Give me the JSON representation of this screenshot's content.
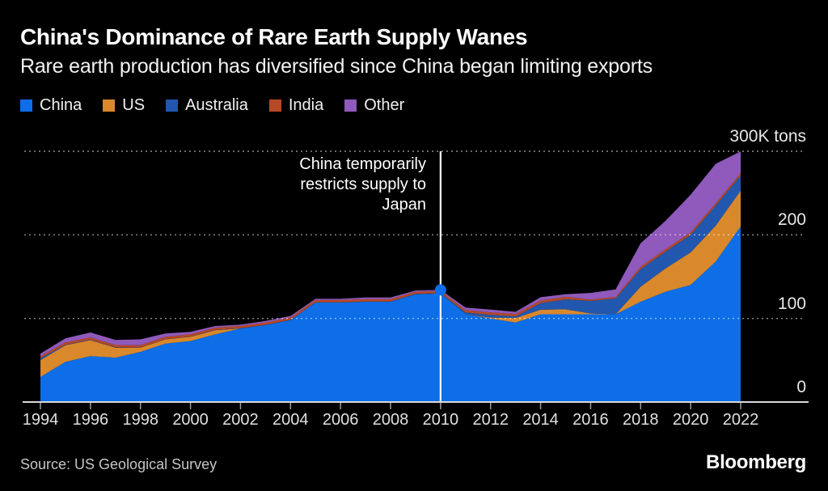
{
  "header": {
    "title": "China's Dominance of Rare Earth Supply Wanes",
    "subtitle": "Rare earth production has diversified since China began limiting exports"
  },
  "annotation": {
    "lines": [
      "China temporarily",
      "restricts supply to",
      "Japan"
    ],
    "year": 2010
  },
  "footer": {
    "source": "Source: US Geological Survey",
    "brand": "Bloomberg"
  },
  "colors": {
    "background": "#000000",
    "gridline": "#ffffff",
    "axis_line": "#d9d9d9",
    "tick_mark": "#9a9a9a",
    "marker_line": "#ffffff"
  },
  "chart_data": {
    "type": "area",
    "stacked": true,
    "title": "China's Dominance of Rare Earth Supply Wanes",
    "unit": "K tons (thousand metric tons, rare-earth-oxide equivalent)",
    "x": [
      1994,
      1995,
      1996,
      1997,
      1998,
      1999,
      2000,
      2001,
      2002,
      2003,
      2004,
      2005,
      2006,
      2007,
      2008,
      2009,
      2010,
      2011,
      2012,
      2013,
      2014,
      2015,
      2016,
      2017,
      2018,
      2019,
      2020,
      2021,
      2022
    ],
    "series": [
      {
        "name": "China",
        "color": "#0d6ee8",
        "values": [
          30,
          48,
          55,
          53,
          60,
          70,
          73,
          81,
          88,
          92,
          98,
          119,
          119,
          120,
          120,
          129,
          130,
          105,
          100,
          95,
          105,
          105,
          105,
          105,
          120,
          132,
          140,
          168,
          210
        ]
      },
      {
        "name": "US",
        "color": "#d9882c",
        "values": [
          20,
          20,
          19,
          12,
          5,
          5,
          5,
          5,
          0,
          0,
          0,
          0,
          0,
          0,
          0,
          0,
          0,
          0,
          1,
          5.5,
          5.4,
          5.9,
          1,
          0,
          18,
          28,
          39,
          43,
          43
        ]
      },
      {
        "name": "Australia",
        "color": "#2157ae",
        "values": [
          2.5,
          0.5,
          0.5,
          0.5,
          0.3,
          0.3,
          0.3,
          0.3,
          0.3,
          0.3,
          0.3,
          0.3,
          0.3,
          0.3,
          0.3,
          0.3,
          0.3,
          2.2,
          3.2,
          2,
          8,
          12,
          15,
          19,
          21,
          20,
          21,
          24,
          18
        ]
      },
      {
        "name": "India",
        "color": "#b54827",
        "values": [
          2.5,
          2.7,
          2.7,
          2.7,
          2.7,
          2.7,
          2.7,
          2.7,
          2.7,
          2.7,
          2.7,
          2.7,
          2.7,
          2.7,
          2.7,
          2.7,
          2.8,
          2.8,
          2.9,
          2.9,
          3,
          3,
          1.5,
          1.8,
          2.9,
          2.9,
          2.9,
          2.9,
          2.9
        ]
      },
      {
        "name": "Other",
        "color": "#8f5abb",
        "values": [
          3,
          5,
          6,
          6,
          7,
          4,
          3,
          2,
          1.5,
          2,
          2,
          1.5,
          1.5,
          2,
          2,
          1.5,
          1,
          3,
          3.5,
          2.5,
          4,
          3,
          8,
          9,
          28,
          34,
          45,
          47,
          26
        ]
      }
    ],
    "x_ticks": [
      1994,
      1996,
      1998,
      2000,
      2002,
      2004,
      2006,
      2008,
      2010,
      2012,
      2014,
      2016,
      2018,
      2020,
      2022
    ],
    "y_ticks": [
      {
        "value": 0,
        "label": "0"
      },
      {
        "value": 100,
        "label": "100"
      },
      {
        "value": 200,
        "label": "200"
      },
      {
        "value": 300,
        "label": "300K tons"
      }
    ],
    "ylim": [
      0,
      300
    ],
    "xlim": [
      1994,
      2022
    ],
    "grid": "dotted-horizontal",
    "legend_position": "top-left",
    "marker": {
      "x": 2010,
      "note": "vertical white line with dot at stack top"
    }
  }
}
